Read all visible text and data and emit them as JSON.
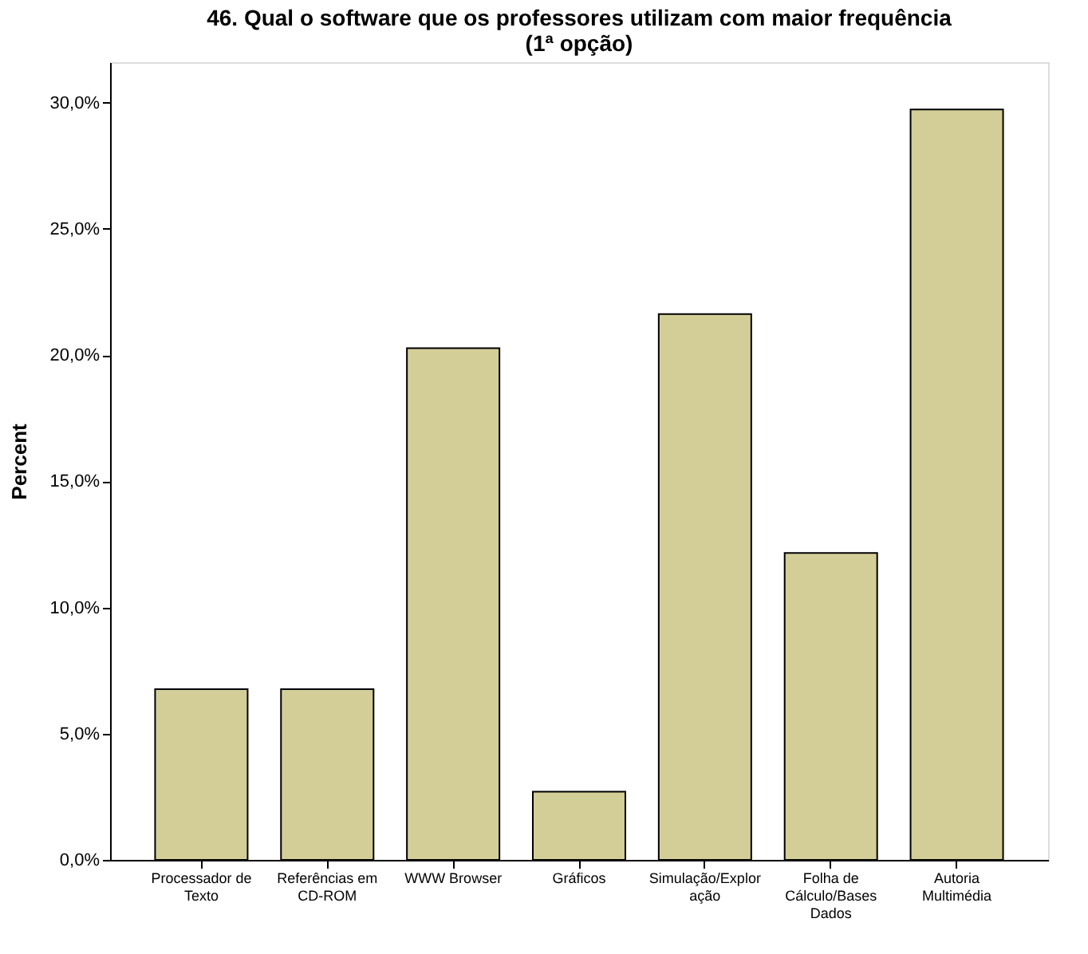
{
  "chart_data": {
    "type": "bar",
    "title": "46. Qual o software que os professores utilizam com maior frequência (1ª opção)",
    "ylabel": "Percent",
    "categories": [
      "Processador de Texto",
      "Referências em CD-ROM",
      "WWW Browser",
      "Gráficos",
      "Simulação/Exploração",
      "Folha de Cálculo/Bases Dados",
      "Autoria Multimédia"
    ],
    "values": [
      6.76,
      6.76,
      20.27,
      2.7,
      21.62,
      12.16,
      29.73
    ],
    "color": "#d3ce97",
    "ylim": [
      0,
      31.6
    ],
    "yticks": [
      {
        "value": 0,
        "label": "0,0%"
      },
      {
        "value": 5,
        "label": "5,0%"
      },
      {
        "value": 10,
        "label": "10,0%"
      },
      {
        "value": 15,
        "label": "15,0%"
      },
      {
        "value": 20,
        "label": "20,0%"
      },
      {
        "value": 25,
        "label": "25,0%"
      },
      {
        "value": 30,
        "label": "30,0%"
      }
    ],
    "grid": false
  }
}
